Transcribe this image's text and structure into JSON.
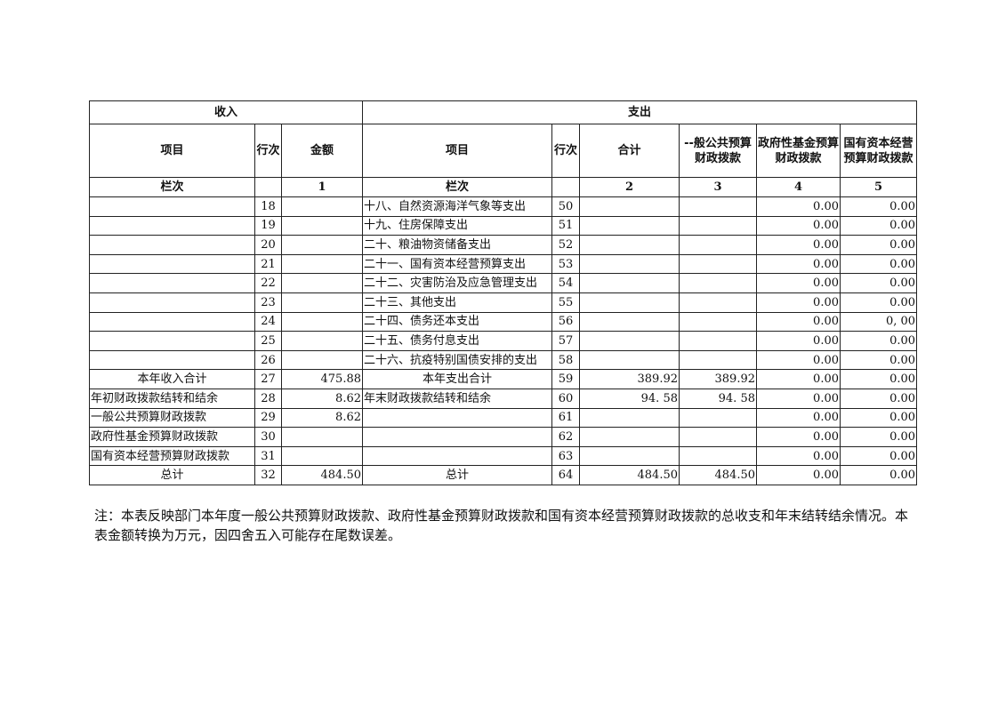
{
  "header": {
    "income": "收入",
    "expense": "支出",
    "income_item": "项目",
    "income_line": "行次",
    "income_amount": "金额",
    "expense_item": "项目",
    "expense_line": "行次",
    "total": "合计",
    "general": "--般公共预算财政拨款",
    "gov_fund": "政府性基金预算财政拨款",
    "state_capital": "国有资本经营预算财政拨款",
    "col_label_left": "栏次",
    "col_label_right": "栏次",
    "col1": "1",
    "col2": "2",
    "col3": "3",
    "col4": "4",
    "col5": "5"
  },
  "rows": [
    {
      "in_item": "",
      "in_line": "18",
      "in_amt": "",
      "ex_item": "十八、自然资源海洋气象等支出",
      "ex_line": "50",
      "total": "",
      "general": "",
      "gov": "0.00",
      "state": "0.00"
    },
    {
      "in_item": "",
      "in_line": "19",
      "in_amt": "",
      "ex_item": "十九、住房保障支出",
      "ex_line": "51",
      "total": "",
      "general": "",
      "gov": "0.00",
      "state": "0.00"
    },
    {
      "in_item": "",
      "in_line": "20",
      "in_amt": "",
      "ex_item": "二十、粮油物资储备支出",
      "ex_line": "52",
      "total": "",
      "general": "",
      "gov": "0.00",
      "state": "0.00"
    },
    {
      "in_item": "",
      "in_line": "21",
      "in_amt": "",
      "ex_item": "二十一、国有资本经营预算支出",
      "ex_line": "53",
      "total": "",
      "general": "",
      "gov": "0.00",
      "state": "0.00"
    },
    {
      "in_item": "",
      "in_line": "22",
      "in_amt": "",
      "ex_item": "二十二、灾害防治及应急管理支出",
      "ex_line": "54",
      "total": "",
      "general": "",
      "gov": "0.00",
      "state": "0.00"
    },
    {
      "in_item": "",
      "in_line": "23",
      "in_amt": "",
      "ex_item": "二十三、其他支出",
      "ex_line": "55",
      "total": "",
      "general": "",
      "gov": "0.00",
      "state": "0.00"
    },
    {
      "in_item": "",
      "in_line": "24",
      "in_amt": "",
      "ex_item": "二十四、债务还本支出",
      "ex_line": "56",
      "total": "",
      "general": "",
      "gov": "0.00",
      "state": "0, 00"
    },
    {
      "in_item": "",
      "in_line": "25",
      "in_amt": "",
      "ex_item": "二十五、债务付息支出",
      "ex_line": "57",
      "total": "",
      "general": "",
      "gov": "0.00",
      "state": "0.00"
    },
    {
      "in_item": "",
      "in_line": "26",
      "in_amt": "",
      "ex_item": "二十六、抗疫特别国债安排的支出",
      "ex_line": "58",
      "total": "",
      "general": "",
      "gov": "0.00",
      "state": "0.00"
    },
    {
      "in_item": "本年收入合计",
      "in_line": "27",
      "in_amt": "475.88",
      "ex_item": "本年支出合计",
      "ex_line": "59",
      "total": "389.92",
      "general": "389.92",
      "gov": "0.00",
      "state": "0.00"
    },
    {
      "in_item": "年初财政拨款结转和结余",
      "in_line": "28",
      "in_amt": "8.62",
      "ex_item": "年末财政拨款结转和结余",
      "ex_line": "60",
      "total": "94. 58",
      "general": "94. 58",
      "gov": "0.00",
      "state": "0.00"
    },
    {
      "in_item": "一般公共预算财政拨款",
      "in_line": "29",
      "in_amt": "8.62",
      "ex_item": "",
      "ex_line": "61",
      "total": "",
      "general": "",
      "gov": "0.00",
      "state": "0.00"
    },
    {
      "in_item": "政府性基金预算财政拨款",
      "in_line": "30",
      "in_amt": "",
      "ex_item": "",
      "ex_line": "62",
      "total": "",
      "general": "",
      "gov": "0.00",
      "state": "0.00"
    },
    {
      "in_item": "国有资本经营预算财政拨款",
      "in_line": "31",
      "in_amt": "",
      "ex_item": "",
      "ex_line": "63",
      "total": "",
      "general": "",
      "gov": "0.00",
      "state": "0.00"
    },
    {
      "in_item": "总计",
      "in_line": "32",
      "in_amt": "484.50",
      "ex_item": "总计",
      "ex_line": "64",
      "total": "484.50",
      "general": "484.50",
      "gov": "0.00",
      "state": "0.00"
    }
  ],
  "note": "注：本表反映部门本年度一般公共预算财政拨款、政府性基金预算财政拨款和国有资本经营预算财政拨款的总收支和年末结转结余情况。本表金额转换为万元，因四舍五入可能存在尾数误差。"
}
